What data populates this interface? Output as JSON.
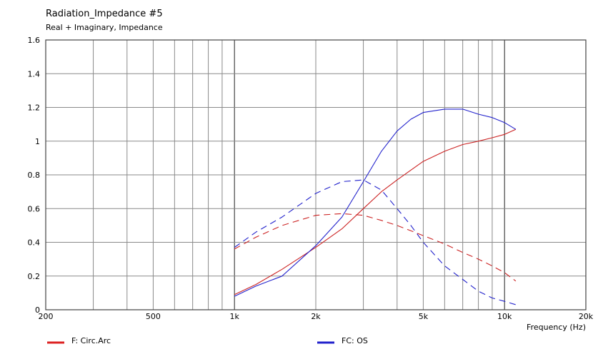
{
  "chart_data": {
    "type": "line",
    "title": "Radiation_Impedance #5",
    "subtitle": "Real + Imaginary, Impedance",
    "xlabel": "Frequency  (Hz)",
    "ylabel": "",
    "xscale": "log",
    "xlim": [
      200,
      20000
    ],
    "ylim": [
      0,
      1.6
    ],
    "grid": true,
    "legend_position": "bottom",
    "x_tick_labels": [
      {
        "value": 200,
        "label": "200"
      },
      {
        "value": 500,
        "label": "500"
      },
      {
        "value": 1000,
        "label": "1k"
      },
      {
        "value": 2000,
        "label": "2k"
      },
      {
        "value": 5000,
        "label": "5k"
      },
      {
        "value": 10000,
        "label": "10k"
      },
      {
        "value": 20000,
        "label": "20k"
      }
    ],
    "y_tick_labels": [
      {
        "value": 0,
        "label": "0"
      },
      {
        "value": 0.2,
        "label": "0.2"
      },
      {
        "value": 0.4,
        "label": "0.4"
      },
      {
        "value": 0.6,
        "label": "0.6"
      },
      {
        "value": 0.8,
        "label": "0.8"
      },
      {
        "value": 1,
        "label": "1"
      },
      {
        "value": 1.2,
        "label": "1.2"
      },
      {
        "value": 1.4,
        "label": "1.4"
      },
      {
        "value": 1.6,
        "label": "1.6"
      }
    ],
    "legend": [
      {
        "label": "F: Circ.Arc",
        "color": "#dd2222"
      },
      {
        "label": "FC: OS",
        "color": "#2222cc"
      }
    ],
    "series": [
      {
        "group": "F: Circ.Arc",
        "component": "real",
        "style": "solid",
        "color": "#cc2222",
        "x": [
          1000,
          1200,
          1500,
          2000,
          2500,
          3000,
          3500,
          4000,
          5000,
          6000,
          7000,
          8000,
          9000,
          10000,
          11000
        ],
        "y": [
          0.09,
          0.15,
          0.24,
          0.37,
          0.48,
          0.6,
          0.7,
          0.77,
          0.88,
          0.94,
          0.98,
          1.0,
          1.02,
          1.04,
          1.07
        ]
      },
      {
        "group": "F: Circ.Arc",
        "component": "imaginary",
        "style": "dashed",
        "color": "#cc2222",
        "x": [
          1000,
          1200,
          1500,
          2000,
          2500,
          3000,
          3500,
          4000,
          5000,
          6000,
          7000,
          8000,
          9000,
          10000,
          11000
        ],
        "y": [
          0.36,
          0.43,
          0.5,
          0.56,
          0.57,
          0.56,
          0.53,
          0.5,
          0.44,
          0.39,
          0.34,
          0.3,
          0.26,
          0.22,
          0.17
        ]
      },
      {
        "group": "FC: OS",
        "component": "real",
        "style": "solid",
        "color": "#2222cc",
        "x": [
          1000,
          1200,
          1500,
          2000,
          2500,
          3000,
          3500,
          4000,
          4500,
          5000,
          6000,
          7000,
          8000,
          9000,
          10000,
          11000
        ],
        "y": [
          0.08,
          0.14,
          0.2,
          0.38,
          0.55,
          0.76,
          0.94,
          1.06,
          1.13,
          1.17,
          1.19,
          1.19,
          1.16,
          1.14,
          1.11,
          1.07
        ]
      },
      {
        "group": "FC: OS",
        "component": "imaginary",
        "style": "dashed",
        "color": "#2222cc",
        "x": [
          1000,
          1200,
          1500,
          2000,
          2500,
          3000,
          3500,
          4000,
          4500,
          5000,
          6000,
          7000,
          8000,
          9000,
          10000,
          11000
        ],
        "y": [
          0.37,
          0.46,
          0.55,
          0.69,
          0.76,
          0.77,
          0.71,
          0.6,
          0.5,
          0.4,
          0.26,
          0.18,
          0.11,
          0.07,
          0.05,
          0.03
        ]
      }
    ]
  }
}
